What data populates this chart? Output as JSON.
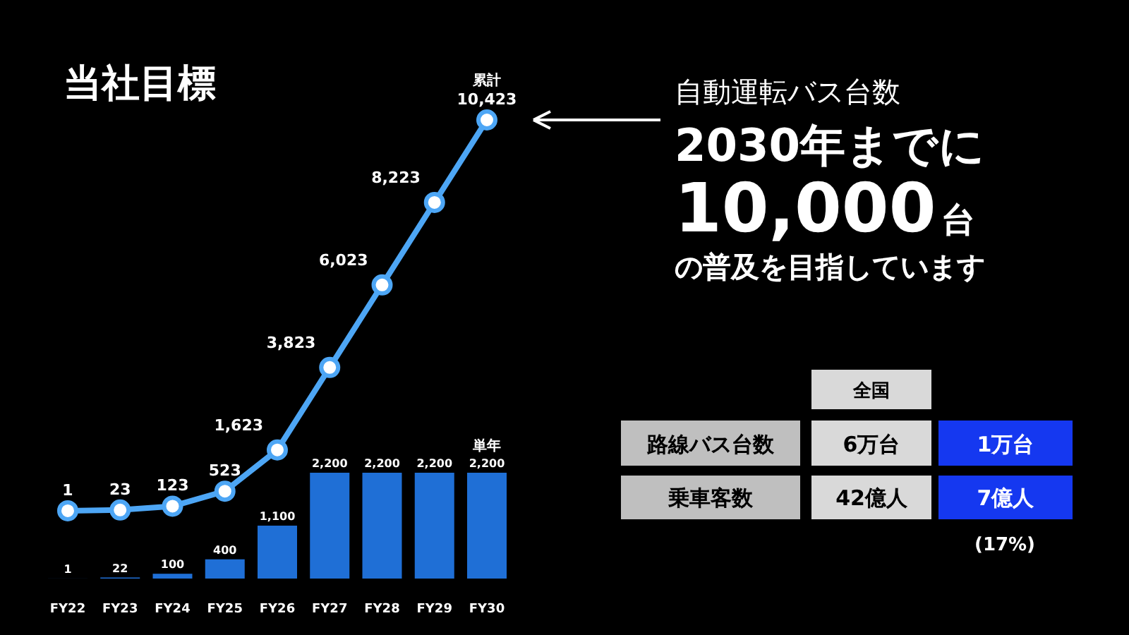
{
  "chart_data": [
    {
      "type": "line",
      "title": "当社目標",
      "categories": [
        null,
        null,
        null,
        null,
        null,
        null,
        null,
        null,
        null
      ],
      "data_labels": true,
      "legend": false,
      "series": [
        {
          "name": "累計",
          "color": "#4da6f5",
          "marker": "circle",
          "values": [
            1,
            23,
            123,
            523,
            1623,
            3823,
            6023,
            8223,
            10423
          ],
          "value_labels": [
            "1",
            "23",
            "123",
            "523",
            "1,623",
            "3,823",
            "6,023",
            "8,223",
            "10,423"
          ]
        }
      ],
      "annotations": [
        "自動運転バス台数",
        "2030年までに",
        "10,000",
        "台",
        "の普及を目指しています"
      ]
    },
    {
      "type": "bar",
      "categories": [
        "FY22",
        "FY23",
        "FY24",
        "FY25",
        "FY26",
        "FY27",
        "FY28",
        "FY29",
        "FY30"
      ],
      "data_labels": true,
      "legend": false,
      "series": [
        {
          "name": "単年",
          "color": "#1f6fd6",
          "values": [
            1,
            22,
            100,
            400,
            1100,
            2200,
            2200,
            2200,
            2200
          ],
          "value_labels": [
            "1",
            "22",
            "100",
            "400",
            "1,100",
            "2,200",
            "2,200",
            "2,200",
            "2,200"
          ]
        }
      ]
    },
    {
      "type": "other",
      "categories": [
        "全国",
        null
      ],
      "y_categories": [
        "路線バス台数",
        "乗車客数"
      ],
      "cell_labels": [
        [
          "6万台",
          "1万台"
        ],
        [
          "42億人",
          "7億人"
        ]
      ],
      "colors": [
        "#d9d9d9",
        "#1538f0"
      ],
      "annotations": [
        "(17%)"
      ]
    }
  ]
}
